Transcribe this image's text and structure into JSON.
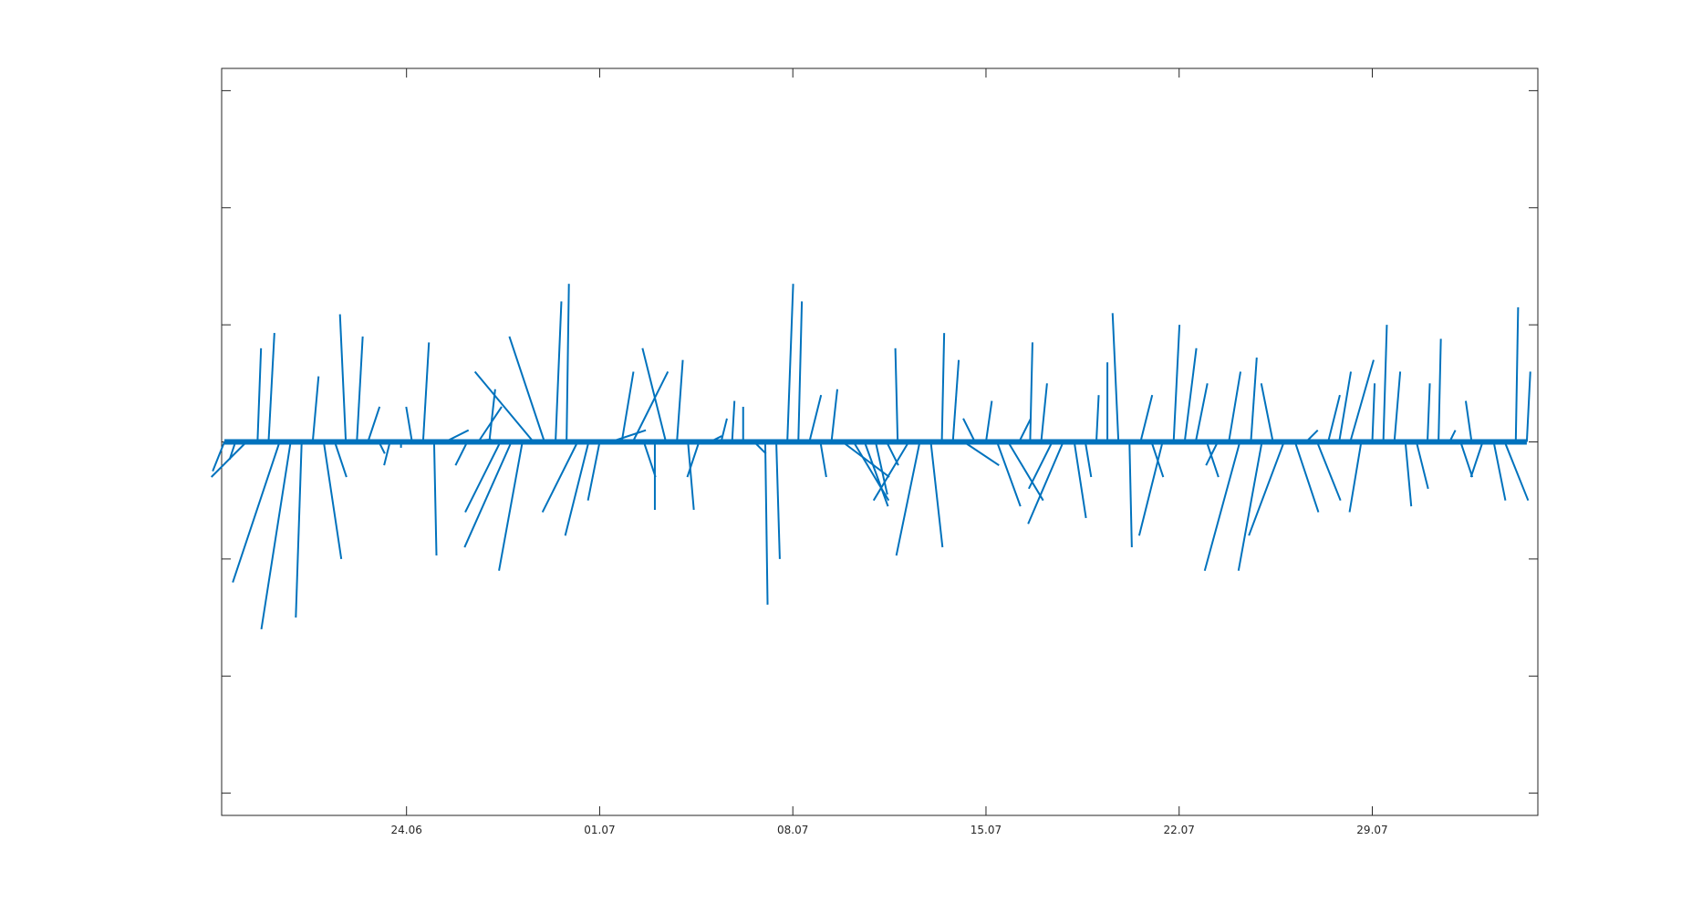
{
  "chart_data": {
    "type": "feather",
    "color": "#0072bd",
    "x": [
      168.4,
      168.8,
      169.2,
      169.6,
      170.0,
      170.4,
      170.8,
      171.2,
      171.6,
      172.0,
      172.4,
      172.8,
      173.2,
      173.6,
      174.0,
      174.4,
      174.8,
      175.2,
      175.6,
      176.0,
      176.4,
      176.8,
      177.2,
      177.6,
      178.0,
      178.4,
      178.8,
      179.2,
      179.6,
      180.0,
      180.4,
      180.8,
      181.2,
      181.6,
      182.0,
      182.4,
      182.8,
      183.2,
      183.6,
      184.0,
      184.4,
      184.8,
      185.2,
      185.6,
      186.0,
      186.4,
      186.8,
      187.2,
      187.6,
      188.0,
      188.4,
      188.8,
      189.2,
      189.6,
      190.0,
      190.4,
      190.8,
      191.2,
      191.6,
      192.0,
      192.4,
      192.8,
      193.2,
      193.6,
      194.0,
      194.4,
      194.8,
      195.2,
      195.6,
      196.0,
      196.4,
      196.8,
      197.2,
      197.6,
      198.0,
      198.4,
      198.8,
      199.2,
      199.6,
      200.0,
      200.4,
      200.8,
      201.2,
      201.6,
      202.0,
      202.4,
      202.8,
      203.2,
      203.6,
      204.0,
      204.4,
      204.8,
      205.2,
      205.6,
      206.0,
      206.4,
      206.8,
      207.2,
      207.6,
      208.0,
      208.4,
      208.8,
      209.2,
      209.6,
      210.0,
      210.4,
      210.8,
      211.2,
      211.6,
      212.0,
      212.4,
      212.8,
      213.2,
      213.6,
      214.0,
      214.4,
      214.8,
      215.2,
      215.6
    ],
    "u": [
      -0.1,
      -0.05,
      -0.3,
      0.03,
      0.05,
      -0.4,
      -0.25,
      -0.05,
      0.05,
      0.15,
      0.1,
      -0.05,
      0.05,
      0.1,
      0.05,
      -0.05,
      0,
      -0.05,
      0.05,
      0.02,
      0.2,
      0.3,
      -0.1,
      0.2,
      0.05,
      -0.3,
      -0.4,
      -0.2,
      -0.5,
      -0.3,
      0.05,
      0.02,
      -0.3,
      -0.2,
      -0.1,
      0.3,
      0.1,
      0.3,
      0.1,
      0,
      -0.2,
      0.05,
      0.05,
      -0.1,
      0.1,
      0.05,
      0.02,
      0,
      0.1,
      0.02,
      0.03,
      0.05,
      0.03,
      0.1,
      0.05,
      0.05,
      0.4,
      0.3,
      0.2,
      0.1,
      0.1,
      -0.02,
      -0.3,
      -0.2,
      0.1,
      0.02,
      0.05,
      0.3,
      -0.1,
      0.05,
      0.2,
      0.3,
      0.1,
      0.02,
      0.05,
      -0.2,
      -0.3,
      0.1,
      0.05,
      0.02,
      0,
      -0.05,
      0.02,
      0.1,
      0.1,
      -0.2,
      0.05,
      0.1,
      0.1,
      0.1,
      -0.1,
      0.1,
      -0.3,
      0.05,
      -0.2,
      -0.1,
      -0.3,
      0.2,
      0.1,
      0.2,
      0.1,
      0.1,
      0.2,
      -0.1,
      0.02,
      0.03,
      0.05,
      0.05,
      0.1,
      0.02,
      0.02,
      0.05,
      0.1,
      -0.05,
      -0.1,
      0.1,
      0.2,
      0.02,
      0.03
    ],
    "v": [
      -0.25,
      -0.15,
      -0.3,
      0.8,
      0.93,
      -1.2,
      -1.6,
      -1.5,
      0.56,
      -1.0,
      -0.3,
      1.09,
      0.9,
      0.3,
      -0.1,
      -0.2,
      -0.05,
      0.3,
      0.85,
      -0.97,
      0.1,
      0.02,
      -0.2,
      0.3,
      0.45,
      -0.6,
      -0.9,
      -1.1,
      0.6,
      0.9,
      1.2,
      1.35,
      -0.6,
      -0.8,
      -0.5,
      0.1,
      0.6,
      0.6,
      -0.3,
      -0.58,
      0.8,
      0.7,
      -0.58,
      -0.3,
      0.05,
      0.2,
      0.35,
      0.3,
      -0.1,
      -1.39,
      -1.0,
      1.35,
      1.2,
      0.4,
      -0.3,
      0.45,
      -0.3,
      -0.5,
      -0.55,
      -0.45,
      -0.2,
      0.8,
      -0.5,
      -0.97,
      -0.9,
      0.93,
      0.7,
      -0.2,
      0.2,
      0.35,
      -0.55,
      -0.5,
      0.2,
      0.85,
      0.5,
      -0.4,
      -0.7,
      -0.65,
      -0.3,
      0.4,
      0.68,
      1.1,
      -0.9,
      0.4,
      -0.3,
      -0.8,
      1.0,
      0.8,
      0.5,
      -0.3,
      -0.2,
      0.6,
      -1.1,
      0.72,
      -1.1,
      0.5,
      -0.8,
      -0.6,
      0.1,
      -0.5,
      0.4,
      0.6,
      0.7,
      -0.6,
      0.5,
      1.0,
      0.6,
      -0.55,
      -0.4,
      0.5,
      0.88,
      0.1,
      -0.3,
      0.35,
      -0.3,
      -0.5,
      -0.5,
      1.15,
      0.6
    ],
    "xlim": [
      168.3,
      216.0
    ],
    "ylim": [
      -3.19,
      3.19
    ],
    "xticks": [
      {
        "value": 175,
        "label": "24.06"
      },
      {
        "value": 182,
        "label": "01.07"
      },
      {
        "value": 189,
        "label": "08.07"
      },
      {
        "value": 196,
        "label": "15.07"
      },
      {
        "value": 203,
        "label": "22.07"
      },
      {
        "value": 210,
        "label": "29.07"
      }
    ],
    "yticks": [
      -3,
      -2,
      -1,
      0,
      1,
      2,
      3
    ]
  }
}
